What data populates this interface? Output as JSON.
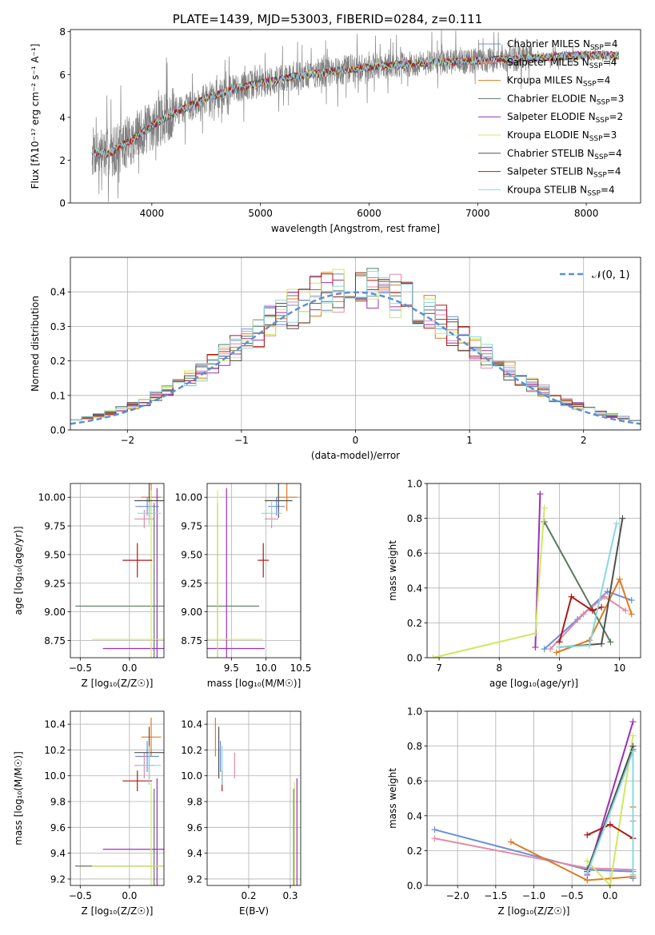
{
  "title": "PLATE=1439, MJD=53003, FIBERID=0284, z=0.111",
  "colors": {
    "Chabrier MILES": "#6a8fdb",
    "Salpeter MILES": "#e48aa6",
    "Kroupa MILES": "#e07a20",
    "Chabrier ELODIE": "#5a7a5a",
    "Salpeter ELODIE": "#9a30b8",
    "Kroupa ELODIE": "#d0e860",
    "Chabrier STELIB": "#505050",
    "Salpeter STELIB": "#b01818",
    "Kroupa STELIB": "#88d8e0",
    "data": "#808080",
    "normal": "#5b8fd6"
  },
  "chart_data": [
    {
      "type": "line",
      "panel": "spectrum",
      "xlabel": "wavelength [Angstrom, rest frame]",
      "ylabel": "Flux [fλ10⁻¹⁷ erg cm⁻² s⁻¹ A⁻¹]",
      "xlim": [
        3250,
        8500
      ],
      "ylim": [
        0,
        8.1
      ],
      "xticks": [
        4000,
        5000,
        6000,
        7000,
        8000
      ],
      "yticks": [
        0,
        2,
        4,
        6,
        8
      ],
      "legend_location": "top-right",
      "legend": [
        {
          "name": "Chabrier MILES",
          "nssp": "4"
        },
        {
          "name": "Salpeter MILES",
          "nssp": "4"
        },
        {
          "name": "Kroupa MILES",
          "nssp": "4"
        },
        {
          "name": "Chabrier ELODIE",
          "nssp": "3"
        },
        {
          "name": "Salpeter ELODIE",
          "nssp": "2"
        },
        {
          "name": "Kroupa ELODIE",
          "nssp": "3"
        },
        {
          "name": "Chabrier STELIB",
          "nssp": "4"
        },
        {
          "name": "Salpeter STELIB",
          "nssp": "4"
        },
        {
          "name": "Kroupa STELIB",
          "nssp": "4"
        }
      ],
      "continuum": {
        "x": [
          3450,
          3600,
          3800,
          4000,
          4200,
          4500,
          4800,
          5000,
          5300,
          5600,
          6000,
          6400,
          6800,
          7200,
          7600,
          8000,
          8300
        ],
        "y": [
          2.4,
          2.3,
          2.9,
          3.6,
          4.2,
          4.9,
          5.4,
          5.6,
          5.9,
          6.1,
          6.35,
          6.5,
          6.6,
          6.7,
          6.8,
          6.9,
          6.9
        ]
      }
    },
    {
      "type": "line",
      "panel": "residual-histogram",
      "xlabel": "(data-model)/error",
      "ylabel": "Normed distribution",
      "xlim": [
        -2.5,
        2.5
      ],
      "ylim": [
        0,
        0.5
      ],
      "xticks": [
        -2,
        -1,
        0,
        1,
        2
      ],
      "yticks": [
        0.0,
        0.1,
        0.2,
        0.3,
        0.4
      ],
      "legend_location": "top-right",
      "legend_label": "𝒩(0, 1)",
      "grid": true,
      "reference_curve": "normal(0,1) pdf",
      "bins": {
        "start": -2.5,
        "width": 0.1,
        "count": 50
      }
    },
    {
      "type": "scatter",
      "panel": "age-vs-Z",
      "xlabel": "Z [log₁₀(Z/Z☉)]",
      "ylabel": "age  [log₁₀(age/yr)]",
      "xlim": [
        -0.6,
        0.35
      ],
      "ylim": [
        8.6,
        10.12
      ],
      "xticks": [
        -0.5,
        0.0
      ],
      "yticks": [
        8.75,
        9.0,
        9.25,
        9.5,
        9.75,
        10.0
      ],
      "grid": true,
      "points": [
        {
          "series": "Chabrier MILES",
          "x": 0.18,
          "y": 9.92,
          "xerr": 0.12,
          "yerr": 0.08
        },
        {
          "series": "Salpeter MILES",
          "x": 0.15,
          "y": 9.81,
          "xerr": 0.1,
          "yerr": 0.08
        },
        {
          "series": "Kroupa MILES",
          "x": 0.22,
          "y": 10.0,
          "xerr": 0.1,
          "yerr": 0.12
        },
        {
          "series": "Chabrier ELODIE",
          "x": 0.25,
          "y": 9.05,
          "xerr": 0.8,
          "yerr": 0.9
        },
        {
          "series": "Salpeter ELODIE",
          "x": 0.28,
          "y": 8.68,
          "xerr": 0.55,
          "yerr": 1.4
        },
        {
          "series": "Kroupa ELODIE",
          "x": 0.22,
          "y": 8.76,
          "xerr": 0.6,
          "yerr": 1.3
        },
        {
          "series": "Chabrier STELIB",
          "x": 0.2,
          "y": 9.97,
          "xerr": 0.15,
          "yerr": 0.15
        },
        {
          "series": "Salpeter STELIB",
          "x": 0.08,
          "y": 9.45,
          "xerr": 0.15,
          "yerr": 0.15
        },
        {
          "series": "Kroupa STELIB",
          "x": 0.2,
          "y": 9.86,
          "xerr": 0.12,
          "yerr": 0.1
        }
      ]
    },
    {
      "type": "scatter",
      "panel": "age-vs-mass",
      "xlabel": "mass [log₁₀(M/M☉)]",
      "ylabel": "",
      "xlim": [
        9.15,
        10.5
      ],
      "ylim": [
        8.6,
        10.12
      ],
      "xticks": [
        9.5,
        10.0,
        10.5
      ],
      "yticks": [
        8.75,
        9.0,
        9.25,
        9.5,
        9.75,
        10.0
      ],
      "grid": true,
      "points": [
        {
          "series": "Chabrier MILES",
          "x": 10.15,
          "y": 9.92,
          "xerr": 0.12,
          "yerr": 0.08
        },
        {
          "series": "Salpeter MILES",
          "x": 10.08,
          "y": 9.81,
          "xerr": 0.1,
          "yerr": 0.08
        },
        {
          "series": "Kroupa MILES",
          "x": 10.3,
          "y": 10.0,
          "xerr": 0.15,
          "yerr": 0.12
        },
        {
          "series": "Chabrier ELODIE",
          "x": 9.3,
          "y": 9.05,
          "xerr": 0.6,
          "yerr": 0.9
        },
        {
          "series": "Salpeter ELODIE",
          "x": 9.43,
          "y": 8.68,
          "xerr": 0.55,
          "yerr": 1.4
        },
        {
          "series": "Kroupa ELODIE",
          "x": 9.3,
          "y": 8.76,
          "xerr": 0.65,
          "yerr": 1.3
        },
        {
          "series": "Chabrier STELIB",
          "x": 10.18,
          "y": 9.97,
          "xerr": 0.2,
          "yerr": 0.15
        },
        {
          "series": "Salpeter STELIB",
          "x": 9.96,
          "y": 9.45,
          "xerr": 0.08,
          "yerr": 0.15
        },
        {
          "series": "Kroupa STELIB",
          "x": 10.08,
          "y": 9.86,
          "xerr": 0.15,
          "yerr": 0.1
        }
      ]
    },
    {
      "type": "line",
      "panel": "mass-weight-vs-age",
      "xlabel": "age  [log₁₀(age/yr)]",
      "ylabel": "mass weight",
      "xlim": [
        6.8,
        10.35
      ],
      "ylim": [
        0,
        1.0
      ],
      "xticks": [
        7,
        8,
        9,
        10
      ],
      "yticks": [
        0.0,
        0.2,
        0.4,
        0.6,
        0.8,
        1.0
      ],
      "grid": true,
      "series": [
        {
          "name": "Chabrier MILES",
          "x": [
            8.75,
            9.3,
            9.8,
            10.2
          ],
          "y": [
            0.05,
            0.22,
            0.38,
            0.33
          ]
        },
        {
          "name": "Salpeter MILES",
          "x": [
            8.85,
            9.4,
            9.75,
            10.1
          ],
          "y": [
            0.05,
            0.25,
            0.35,
            0.27
          ]
        },
        {
          "name": "Kroupa MILES",
          "x": [
            8.95,
            9.5,
            10.0,
            10.2
          ],
          "y": [
            0.03,
            0.1,
            0.45,
            0.25
          ]
        },
        {
          "name": "Chabrier ELODIE",
          "x": [
            8.75,
            9.85
          ],
          "y": [
            0.78,
            0.09
          ]
        },
        {
          "name": "Salpeter ELODIE",
          "x": [
            8.6,
            8.68
          ],
          "y": [
            0.06,
            0.94
          ]
        },
        {
          "name": "Kroupa ELODIE",
          "x": [
            6.9,
            8.6,
            8.75
          ],
          "y": [
            0.0,
            0.14,
            0.86
          ]
        },
        {
          "name": "Chabrier STELIB",
          "x": [
            9.0,
            9.7,
            10.05
          ],
          "y": [
            0.06,
            0.08,
            0.8
          ]
        },
        {
          "name": "Salpeter STELIB",
          "x": [
            9.0,
            9.2,
            9.55,
            9.7
          ],
          "y": [
            0.09,
            0.35,
            0.27,
            0.29
          ]
        },
        {
          "name": "Kroupa STELIB",
          "x": [
            9.0,
            9.5,
            9.95
          ],
          "y": [
            0.06,
            0.07,
            0.77
          ]
        }
      ]
    },
    {
      "type": "scatter",
      "panel": "mass-vs-Z",
      "xlabel": "Z [log₁₀(Z/Z☉)]",
      "ylabel": "mass [log₁₀(M/M☉)]",
      "xlim": [
        -0.6,
        0.35
      ],
      "ylim": [
        9.15,
        10.5
      ],
      "xticks": [
        -0.5,
        0.0
      ],
      "yticks": [
        9.2,
        9.4,
        9.6,
        9.8,
        10.0,
        10.2,
        10.4
      ],
      "grid": true,
      "points": [
        {
          "series": "Chabrier MILES",
          "x": 0.18,
          "y": 10.15,
          "xerr": 0.12,
          "yerr": 0.12
        },
        {
          "series": "Salpeter MILES",
          "x": 0.15,
          "y": 10.08,
          "xerr": 0.1,
          "yerr": 0.1
        },
        {
          "series": "Kroupa MILES",
          "x": 0.22,
          "y": 10.3,
          "xerr": 0.1,
          "yerr": 0.15
        },
        {
          "series": "Chabrier ELODIE",
          "x": 0.25,
          "y": 9.3,
          "xerr": 0.8,
          "yerr": 0.6
        },
        {
          "series": "Salpeter ELODIE",
          "x": 0.28,
          "y": 9.43,
          "xerr": 0.55,
          "yerr": 0.55
        },
        {
          "series": "Kroupa ELODIE",
          "x": 0.22,
          "y": 9.3,
          "xerr": 0.6,
          "yerr": 0.65
        },
        {
          "series": "Chabrier STELIB",
          "x": 0.2,
          "y": 10.18,
          "xerr": 0.15,
          "yerr": 0.2
        },
        {
          "series": "Salpeter STELIB",
          "x": 0.08,
          "y": 9.96,
          "xerr": 0.15,
          "yerr": 0.08
        },
        {
          "series": "Kroupa STELIB",
          "x": 0.2,
          "y": 10.08,
          "xerr": 0.12,
          "yerr": 0.15
        }
      ]
    },
    {
      "type": "scatter",
      "panel": "mass-vs-ebv",
      "xlabel": "E(B-V)",
      "ylabel": "",
      "xlim": [
        0.1,
        0.325
      ],
      "ylim": [
        9.15,
        10.5
      ],
      "xticks": [
        0.2,
        0.3
      ],
      "yticks": [
        9.2,
        9.4,
        9.6,
        9.8,
        10.0,
        10.2,
        10.4
      ],
      "grid": true,
      "points": [
        {
          "series": "Chabrier MILES",
          "x": 0.132,
          "y": 10.15,
          "xerr": 0,
          "yerr": 0.12
        },
        {
          "series": "Salpeter MILES",
          "x": 0.166,
          "y": 10.08,
          "xerr": 0,
          "yerr": 0.1
        },
        {
          "series": "Kroupa MILES",
          "x": 0.12,
          "y": 10.3,
          "xerr": 0,
          "yerr": 0.15
        },
        {
          "series": "Chabrier ELODIE",
          "x": 0.308,
          "y": 9.3,
          "xerr": 0,
          "yerr": 0.6
        },
        {
          "series": "Salpeter ELODIE",
          "x": 0.316,
          "y": 9.43,
          "xerr": 0,
          "yerr": 0.55
        },
        {
          "series": "Kroupa ELODIE",
          "x": 0.31,
          "y": 9.3,
          "xerr": 0,
          "yerr": 0.65
        },
        {
          "series": "Chabrier STELIB",
          "x": 0.128,
          "y": 10.18,
          "xerr": 0,
          "yerr": 0.2
        },
        {
          "series": "Salpeter STELIB",
          "x": 0.136,
          "y": 9.96,
          "xerr": 0,
          "yerr": 0.08
        },
        {
          "series": "Kroupa STELIB",
          "x": 0.136,
          "y": 10.08,
          "xerr": 0,
          "yerr": 0.15
        }
      ]
    },
    {
      "type": "line",
      "panel": "mass-weight-vs-Z",
      "xlabel": "Z [log₁₀(Z/Z☉)]",
      "ylabel": "mass weight",
      "xlim": [
        -2.4,
        0.4
      ],
      "ylim": [
        0,
        1.0
      ],
      "xticks": [
        -2.0,
        -1.5,
        -1.0,
        -0.5,
        0.0
      ],
      "yticks": [
        0.0,
        0.2,
        0.4,
        0.6,
        0.8,
        1.0
      ],
      "grid": true,
      "series": [
        {
          "name": "Chabrier MILES",
          "x": [
            -2.3,
            -0.3,
            0.3,
            0.3
          ],
          "y": [
            0.32,
            0.09,
            0.08,
            0.04
          ]
        },
        {
          "name": "Salpeter MILES",
          "x": [
            -2.3,
            -0.3,
            0.3,
            0.3
          ],
          "y": [
            0.27,
            0.1,
            0.09,
            0.37
          ]
        },
        {
          "name": "Kroupa MILES",
          "x": [
            -1.3,
            -0.3,
            0.3,
            0.3
          ],
          "y": [
            0.25,
            0.03,
            0.05,
            0.45
          ]
        },
        {
          "name": "Chabrier ELODIE",
          "x": [
            -0.3,
            0.3
          ],
          "y": [
            0.09,
            0.78
          ]
        },
        {
          "name": "Salpeter ELODIE",
          "x": [
            -0.3,
            0.3
          ],
          "y": [
            0.06,
            0.94
          ]
        },
        {
          "name": "Kroupa ELODIE",
          "x": [
            -0.3,
            0.0,
            0.3
          ],
          "y": [
            0.14,
            0.0,
            0.86
          ]
        },
        {
          "name": "Chabrier STELIB",
          "x": [
            -0.3,
            0.3,
            0.3
          ],
          "y": [
            0.08,
            0.8,
            0.06
          ]
        },
        {
          "name": "Salpeter STELIB",
          "x": [
            -0.3,
            0.0,
            0.3
          ],
          "y": [
            0.29,
            0.35,
            0.27
          ]
        },
        {
          "name": "Kroupa STELIB",
          "x": [
            -0.3,
            0.3,
            0.3
          ],
          "y": [
            0.07,
            0.77,
            0.06
          ]
        }
      ]
    }
  ]
}
